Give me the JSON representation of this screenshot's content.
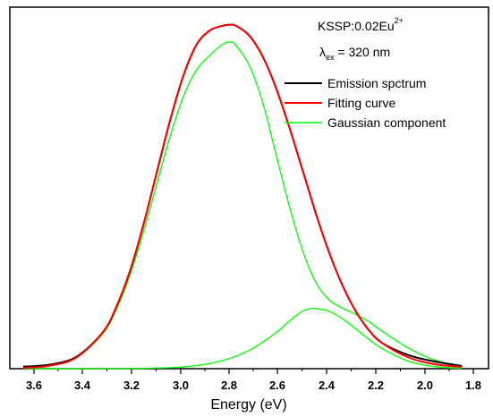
{
  "chart_data": {
    "type": "line",
    "xlabel": "Energy (eV)",
    "ylabel": "",
    "x_reversed": true,
    "xlim": [
      3.6,
      1.8
    ],
    "ylim": [
      0,
      1.07
    ],
    "x_ticks": [
      "3.6",
      "3.4",
      "3.2",
      "3.0",
      "2.8",
      "2.6",
      "2.4",
      "2.2",
      "2.0",
      "1.8"
    ],
    "y_ticks_visible": false,
    "grid": false,
    "legend_position": "top-right",
    "annotations": {
      "sample_main": "KSSP:0.02Eu",
      "sample_sup": "2+",
      "excitation_sym": "λ",
      "excitation_sub": "ex",
      "excitation_rest": " = 320 nm"
    },
    "series": [
      {
        "name": "Emission spctrum",
        "color": "#000000",
        "x": [
          3.55,
          3.45,
          3.35,
          3.25,
          3.2,
          3.15,
          3.1,
          3.05,
          3.0,
          2.95,
          2.9,
          2.85,
          2.8,
          2.77,
          2.75,
          2.7,
          2.65,
          2.6,
          2.55,
          2.5,
          2.45,
          2.4,
          2.35,
          2.3,
          2.25,
          2.2,
          2.1,
          2.0,
          1.9
        ],
        "y": [
          0.006,
          0.012,
          0.035,
          0.108,
          0.182,
          0.285,
          0.419,
          0.573,
          0.727,
          0.861,
          0.956,
          1.0,
          1.015,
          1.018,
          1.015,
          0.986,
          0.925,
          0.833,
          0.717,
          0.59,
          0.461,
          0.345,
          0.248,
          0.171,
          0.114,
          0.076,
          0.04,
          0.021,
          0.008
        ]
      },
      {
        "name": "Fitting curve",
        "color": "#ff0000",
        "x": [
          3.55,
          3.45,
          3.35,
          3.25,
          3.2,
          3.15,
          3.1,
          3.05,
          3.0,
          2.95,
          2.9,
          2.85,
          2.8,
          2.77,
          2.75,
          2.7,
          2.65,
          2.6,
          2.55,
          2.5,
          2.45,
          2.4,
          2.35,
          2.3,
          2.25,
          2.2,
          2.1,
          2.0,
          1.9
        ],
        "y": [
          0.002,
          0.009,
          0.033,
          0.108,
          0.182,
          0.285,
          0.419,
          0.573,
          0.727,
          0.861,
          0.956,
          1.0,
          1.015,
          1.018,
          1.015,
          0.986,
          0.925,
          0.833,
          0.717,
          0.59,
          0.461,
          0.345,
          0.248,
          0.171,
          0.114,
          0.076,
          0.033,
          0.013,
          0.005
        ]
      },
      {
        "name": "Gaussian component",
        "color": "#00ff00",
        "x": [
          3.55,
          3.45,
          3.35,
          3.25,
          3.2,
          3.15,
          3.1,
          3.05,
          3.0,
          2.95,
          2.9,
          2.85,
          2.8,
          2.77,
          2.75,
          2.7,
          2.65,
          2.6,
          2.55,
          2.5,
          2.45,
          2.4,
          2.35,
          2.3,
          2.25,
          2.2,
          2.1,
          2.0,
          1.9
        ],
        "y": [
          0.001,
          0.008,
          0.032,
          0.104,
          0.174,
          0.273,
          0.398,
          0.539,
          0.68,
          0.8,
          0.882,
          0.926,
          0.96,
          0.967,
          0.957,
          0.898,
          0.79,
          0.637,
          0.484,
          0.352,
          0.256,
          0.204,
          0.179,
          0.161,
          0.139,
          0.111,
          0.06,
          0.025,
          0.008
        ]
      },
      {
        "name": "",
        "color": "#00ff00",
        "x": [
          3.55,
          3.2,
          3.0,
          2.9,
          2.8,
          2.7,
          2.6,
          2.55,
          2.5,
          2.47,
          2.45,
          2.4,
          2.35,
          2.3,
          2.25,
          2.2,
          2.1,
          2.0,
          1.9
        ],
        "y": [
          0.0,
          0.0,
          0.003,
          0.009,
          0.024,
          0.054,
          0.106,
          0.14,
          0.17,
          0.178,
          0.178,
          0.17,
          0.148,
          0.118,
          0.087,
          0.059,
          0.022,
          0.006,
          0.001
        ]
      }
    ]
  }
}
